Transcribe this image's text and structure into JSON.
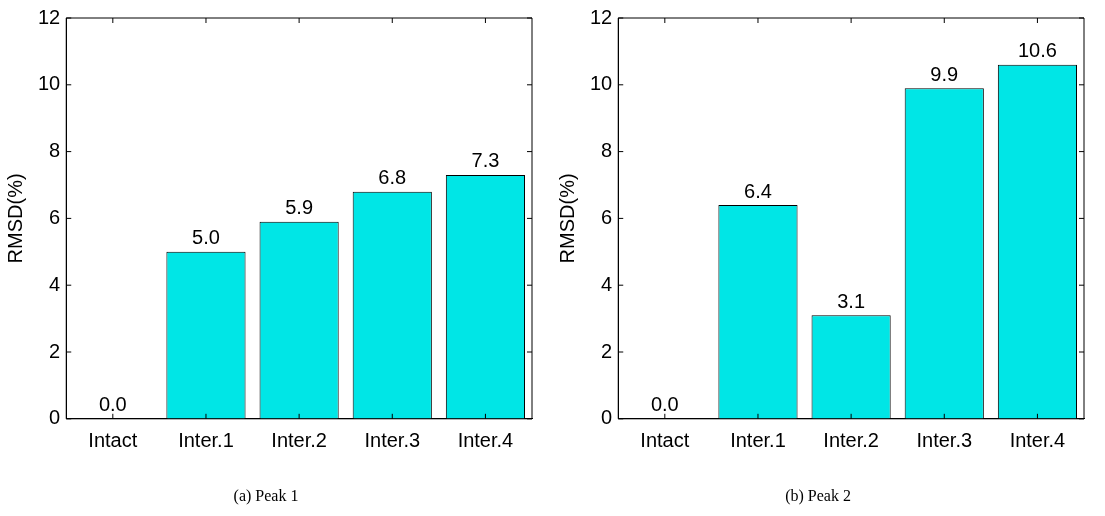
{
  "chart_data": [
    {
      "type": "bar",
      "title": "(a) Peak 1",
      "ylabel": "RMSD(%)",
      "categories": [
        "Intact",
        "Inter.1",
        "Inter.2",
        "Inter.3",
        "Inter.4"
      ],
      "values": [
        0.0,
        5.0,
        5.9,
        6.8,
        7.3
      ],
      "value_labels": [
        "0.0",
        "5.0",
        "5.9",
        "6.8",
        "7.3"
      ],
      "color": "#00e6e6",
      "ylim": [
        0,
        12
      ],
      "yticks": [
        0,
        2,
        4,
        6,
        8,
        10,
        12
      ],
      "grid": false,
      "legend": false
    },
    {
      "type": "bar",
      "title": "(b) Peak 2",
      "ylabel": "RMSD(%)",
      "categories": [
        "Intact",
        "Inter.1",
        "Inter.2",
        "Inter.3",
        "Inter.4"
      ],
      "values": [
        0.0,
        6.4,
        3.1,
        9.9,
        10.6
      ],
      "value_labels": [
        "0.0",
        "6.4",
        "3.1",
        "9.9",
        "10.6"
      ],
      "color": "#00e6e6",
      "ylim": [
        0,
        12
      ],
      "yticks": [
        0,
        2,
        4,
        6,
        8,
        10,
        12
      ],
      "grid": false,
      "legend": false
    }
  ]
}
